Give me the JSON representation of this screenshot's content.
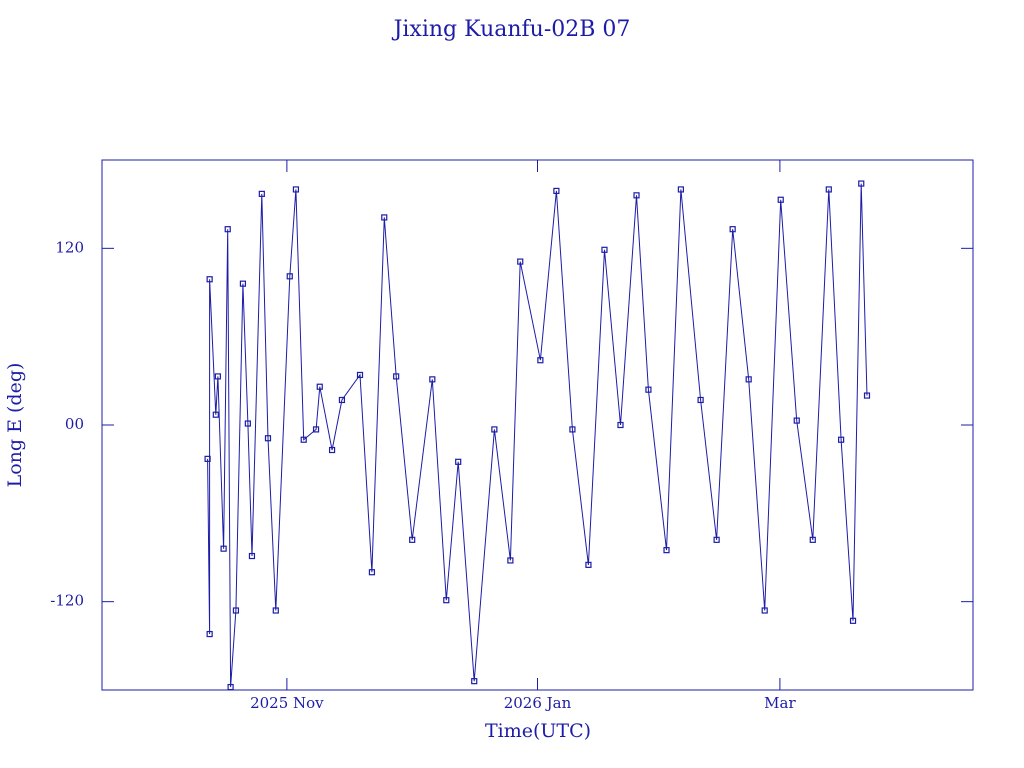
{
  "chart_data": {
    "type": "line",
    "title": "Jixing Kuanfu-02B 07",
    "x_label": "Time(UTC)",
    "y_label": "Long E (deg)",
    "color": "#1c1ca8",
    "xlim": [
      -45,
      167
    ],
    "ylim": [
      -180,
      180
    ],
    "xticks": [
      {
        "value": 0,
        "label": "2025 Nov"
      },
      {
        "value": 61,
        "label": "2026 Jan"
      },
      {
        "value": 120,
        "label": "Mar"
      }
    ],
    "yticks": [
      {
        "value": -120,
        "label": "-120"
      },
      {
        "value": 0,
        "label": "00"
      },
      {
        "value": 120,
        "label": "120"
      }
    ],
    "x": [
      -19.3,
      -18.8,
      -18.8,
      -17.3,
      -16.8,
      -15.4,
      -14.4,
      -13.7,
      -12.4,
      -10.7,
      -9.5,
      -8.5,
      -6.1,
      -4.6,
      -2.7,
      0.7,
      2.2,
      4.1,
      7.1,
      8.0,
      11.0,
      13.4,
      17.8,
      20.7,
      23.7,
      26.6,
      30.5,
      35.4,
      38.8,
      41.7,
      45.6,
      50.5,
      54.4,
      56.8,
      61.7,
      65.6,
      69.5,
      73.4,
      77.3,
      81.2,
      85.1,
      88.0,
      92.4,
      95.9,
      100.7,
      104.6,
      108.5,
      112.4,
      116.3,
      120.2,
      124.1,
      128.0,
      131.9,
      134.9,
      137.8,
      139.8,
      141.2
    ],
    "values": [
      -23,
      -142,
      99,
      7,
      33,
      -84,
      133,
      -178,
      -126,
      96,
      1,
      -89,
      157,
      -9,
      -126,
      101,
      160,
      -10,
      -3,
      26,
      -17,
      17,
      34,
      -100,
      141,
      33,
      -78,
      31,
      -119,
      -25,
      -174,
      -3,
      -92,
      111,
      44,
      159,
      -3,
      -95,
      119,
      0,
      156,
      24,
      -85,
      160,
      17,
      -78,
      133,
      31,
      -126,
      153,
      3,
      -78,
      160,
      -10,
      -133,
      164,
      20
    ]
  }
}
